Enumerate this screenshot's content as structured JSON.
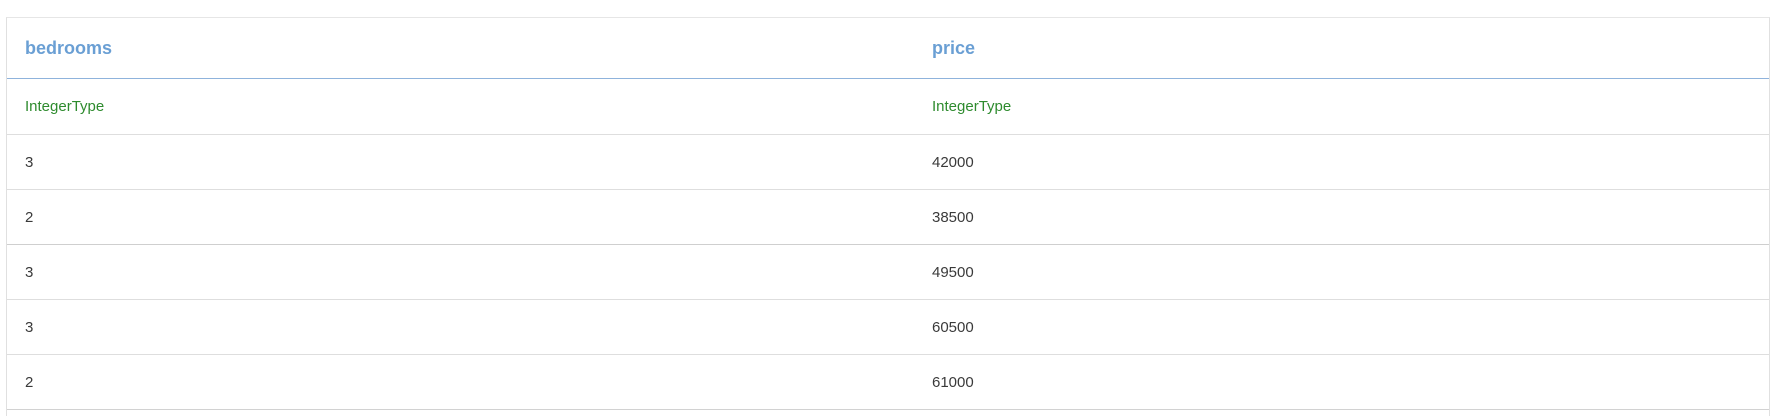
{
  "table": {
    "columns": [
      "bedrooms",
      "price"
    ],
    "types": [
      "IntegerType",
      "IntegerType"
    ],
    "rows": [
      [
        "3",
        "42000"
      ],
      [
        "2",
        "38500"
      ],
      [
        "3",
        "49500"
      ],
      [
        "3",
        "60500"
      ],
      [
        "2",
        "61000"
      ]
    ]
  },
  "colors": {
    "header_text": "#6a9fd4",
    "type_text": "#2e8b2e",
    "cell_text": "#3a3a3a"
  }
}
